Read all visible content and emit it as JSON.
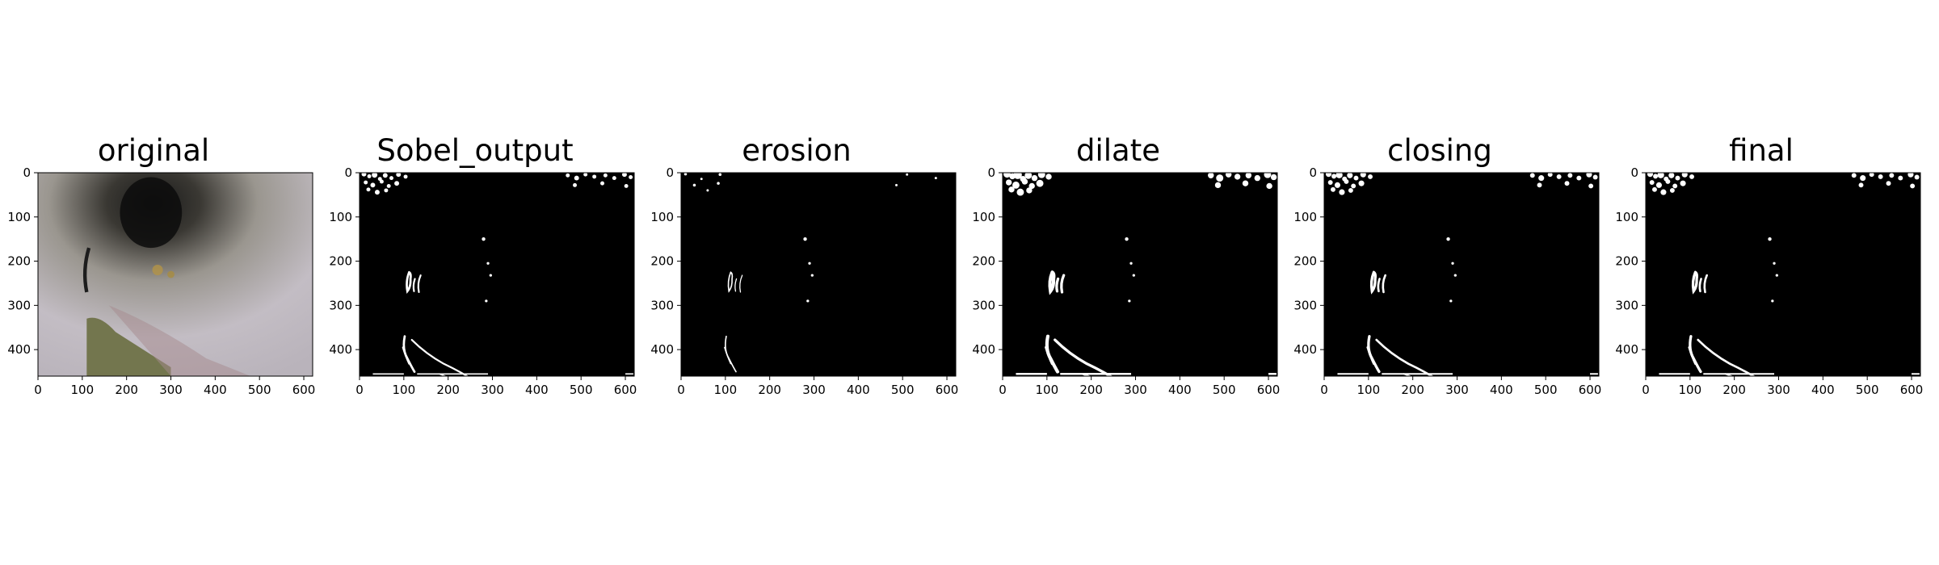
{
  "figure": {
    "panels": [
      {
        "title": "original",
        "kind": "photo"
      },
      {
        "title": "Sobel_output",
        "kind": "binary"
      },
      {
        "title": "erosion",
        "kind": "binary"
      },
      {
        "title": "dilate",
        "kind": "binary"
      },
      {
        "title": "closing",
        "kind": "binary"
      },
      {
        "title": "final",
        "kind": "binary"
      }
    ],
    "x_ticks": [
      "0",
      "100",
      "200",
      "300",
      "400",
      "500",
      "600"
    ],
    "y_ticks": [
      "0",
      "100",
      "200",
      "300",
      "400"
    ],
    "x_tick_values": [
      0,
      100,
      200,
      300,
      400,
      500,
      600
    ],
    "y_tick_values": [
      0,
      100,
      200,
      300,
      400
    ],
    "image_width": 620,
    "image_height": 460
  },
  "colors": {
    "background": "#ffffff",
    "binary_bg": "#000000",
    "foreground": "#ffffff"
  }
}
